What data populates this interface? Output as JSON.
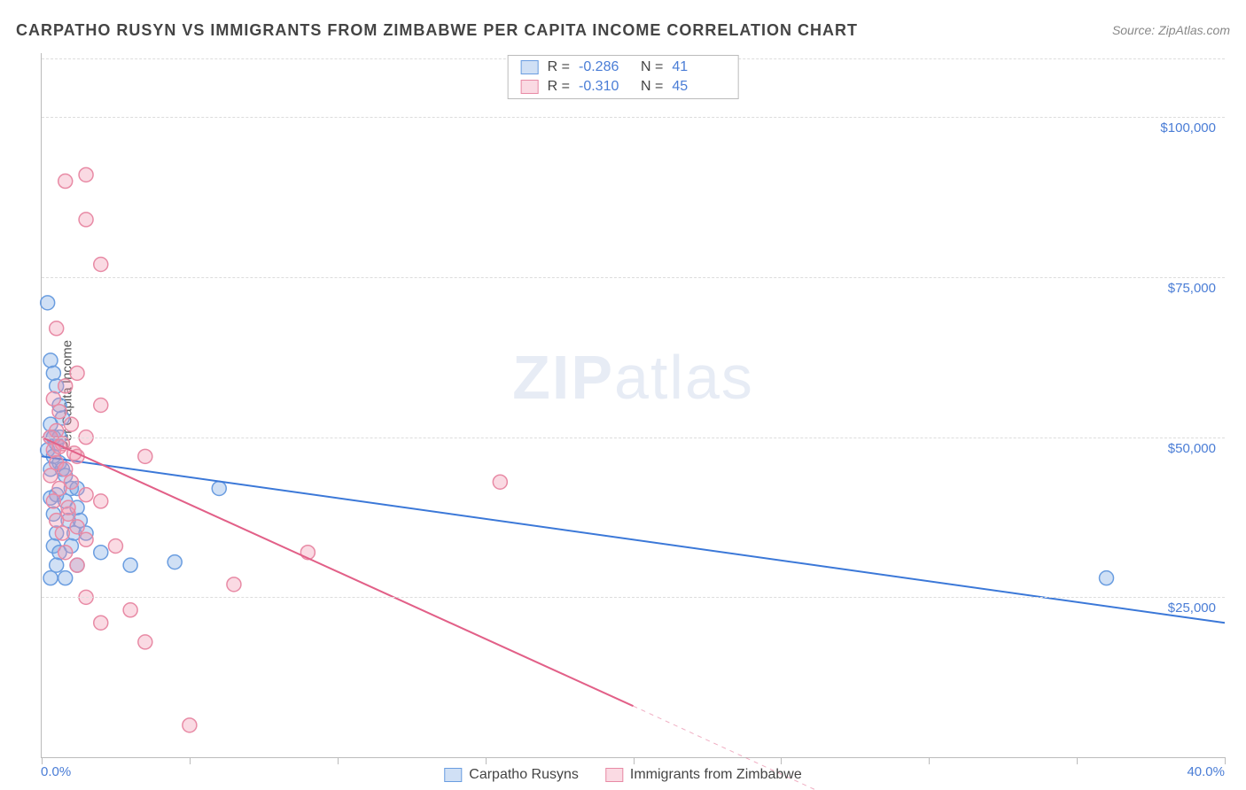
{
  "title": "CARPATHO RUSYN VS IMMIGRANTS FROM ZIMBABWE PER CAPITA INCOME CORRELATION CHART",
  "source": "Source: ZipAtlas.com",
  "watermark_bold": "ZIP",
  "watermark_rest": "atlas",
  "chart": {
    "type": "scatter",
    "y_axis_title": "Per Capita Income",
    "xlim": [
      0,
      40
    ],
    "ylim": [
      0,
      110000
    ],
    "x_ticks": [
      0,
      5,
      10,
      15,
      20,
      25,
      30,
      35,
      40
    ],
    "x_tick_labels_shown": {
      "0": "0.0%",
      "40": "40.0%"
    },
    "y_ticks": [
      25000,
      50000,
      75000,
      100000
    ],
    "y_tick_labels": [
      "$25,000",
      "$50,000",
      "$75,000",
      "$100,000"
    ],
    "grid_color": "#dddddd",
    "axis_color": "#bbbbbb",
    "label_color": "#4a7dd6",
    "background_color": "#ffffff",
    "series": [
      {
        "name": "Carpatho Rusyns",
        "marker_fill": "rgba(120,165,225,0.35)",
        "marker_stroke": "#6a9de0",
        "line_color": "#3b78d8",
        "line_width": 2,
        "marker_radius": 8,
        "R": "-0.286",
        "N": "41",
        "regression": {
          "x1": 0,
          "y1": 47000,
          "x2": 40,
          "y2": 21000
        },
        "points": [
          [
            0.2,
            71000
          ],
          [
            0.3,
            62000
          ],
          [
            0.4,
            60000
          ],
          [
            0.5,
            58000
          ],
          [
            0.6,
            55000
          ],
          [
            0.7,
            53000
          ],
          [
            0.3,
            50000
          ],
          [
            0.4,
            50000
          ],
          [
            0.5,
            49000
          ],
          [
            0.2,
            48000
          ],
          [
            0.4,
            47000
          ],
          [
            0.6,
            46000
          ],
          [
            0.3,
            45000
          ],
          [
            0.7,
            45000
          ],
          [
            0.8,
            44000
          ],
          [
            1.0,
            42000
          ],
          [
            1.2,
            42000
          ],
          [
            0.5,
            41000
          ],
          [
            0.3,
            40500
          ],
          [
            0.8,
            40000
          ],
          [
            1.2,
            39000
          ],
          [
            0.4,
            38000
          ],
          [
            0.9,
            37000
          ],
          [
            1.3,
            37000
          ],
          [
            0.5,
            35000
          ],
          [
            1.1,
            35000
          ],
          [
            1.5,
            35000
          ],
          [
            0.4,
            33000
          ],
          [
            1.0,
            33000
          ],
          [
            0.6,
            32000
          ],
          [
            2.0,
            32000
          ],
          [
            0.5,
            30000
          ],
          [
            1.2,
            30000
          ],
          [
            3.0,
            30000
          ],
          [
            0.3,
            28000
          ],
          [
            0.8,
            28000
          ],
          [
            4.5,
            30500
          ],
          [
            6.0,
            42000
          ],
          [
            36.0,
            28000
          ],
          [
            0.3,
            52000
          ],
          [
            0.6,
            50000
          ]
        ]
      },
      {
        "name": "Immigrants from Zimbabwe",
        "marker_fill": "rgba(240,150,175,0.35)",
        "marker_stroke": "#e88aa5",
        "line_color": "#e26088",
        "line_width": 2,
        "marker_radius": 8,
        "R": "-0.310",
        "N": "45",
        "regression": {
          "x1": 0,
          "y1": 50000,
          "x2": 20,
          "y2": 8000
        },
        "regression_dashed_to": {
          "x2": 28,
          "y2": -9000
        },
        "points": [
          [
            1.5,
            91000
          ],
          [
            0.8,
            90000
          ],
          [
            1.5,
            84000
          ],
          [
            2.0,
            77000
          ],
          [
            0.5,
            67000
          ],
          [
            1.2,
            60000
          ],
          [
            0.8,
            58000
          ],
          [
            0.4,
            56000
          ],
          [
            2.0,
            55000
          ],
          [
            0.6,
            54000
          ],
          [
            1.0,
            52000
          ],
          [
            0.5,
            51000
          ],
          [
            0.3,
            50000
          ],
          [
            1.5,
            50000
          ],
          [
            0.7,
            49000
          ],
          [
            0.4,
            48000
          ],
          [
            1.2,
            47000
          ],
          [
            3.5,
            47000
          ],
          [
            0.5,
            46000
          ],
          [
            0.8,
            45000
          ],
          [
            0.3,
            44000
          ],
          [
            1.0,
            43000
          ],
          [
            0.6,
            42000
          ],
          [
            1.5,
            41000
          ],
          [
            0.4,
            40000
          ],
          [
            2.0,
            40000
          ],
          [
            0.9,
            38000
          ],
          [
            0.5,
            37000
          ],
          [
            1.2,
            36000
          ],
          [
            0.7,
            35000
          ],
          [
            1.5,
            34000
          ],
          [
            2.5,
            33000
          ],
          [
            0.8,
            32000
          ],
          [
            1.2,
            30000
          ],
          [
            15.5,
            43000
          ],
          [
            9.0,
            32000
          ],
          [
            6.5,
            27000
          ],
          [
            1.5,
            25000
          ],
          [
            3.0,
            23000
          ],
          [
            2.0,
            21000
          ],
          [
            3.5,
            18000
          ],
          [
            5.0,
            5000
          ],
          [
            0.9,
            39000
          ],
          [
            0.6,
            48500
          ],
          [
            1.1,
            47500
          ]
        ]
      }
    ]
  },
  "legend_top": {
    "rows": [
      {
        "swatch_fill": "rgba(120,165,225,0.35)",
        "swatch_stroke": "#6a9de0",
        "R_label": "R =",
        "R": "-0.286",
        "N_label": "N =",
        "N": "41"
      },
      {
        "swatch_fill": "rgba(240,150,175,0.35)",
        "swatch_stroke": "#e88aa5",
        "R_label": "R =",
        "R": "-0.310",
        "N_label": "N =",
        "N": "45"
      }
    ]
  },
  "legend_bottom": {
    "items": [
      {
        "swatch_fill": "rgba(120,165,225,0.35)",
        "swatch_stroke": "#6a9de0",
        "label": "Carpatho Rusyns"
      },
      {
        "swatch_fill": "rgba(240,150,175,0.35)",
        "swatch_stroke": "#e88aa5",
        "label": "Immigrants from Zimbabwe"
      }
    ]
  }
}
